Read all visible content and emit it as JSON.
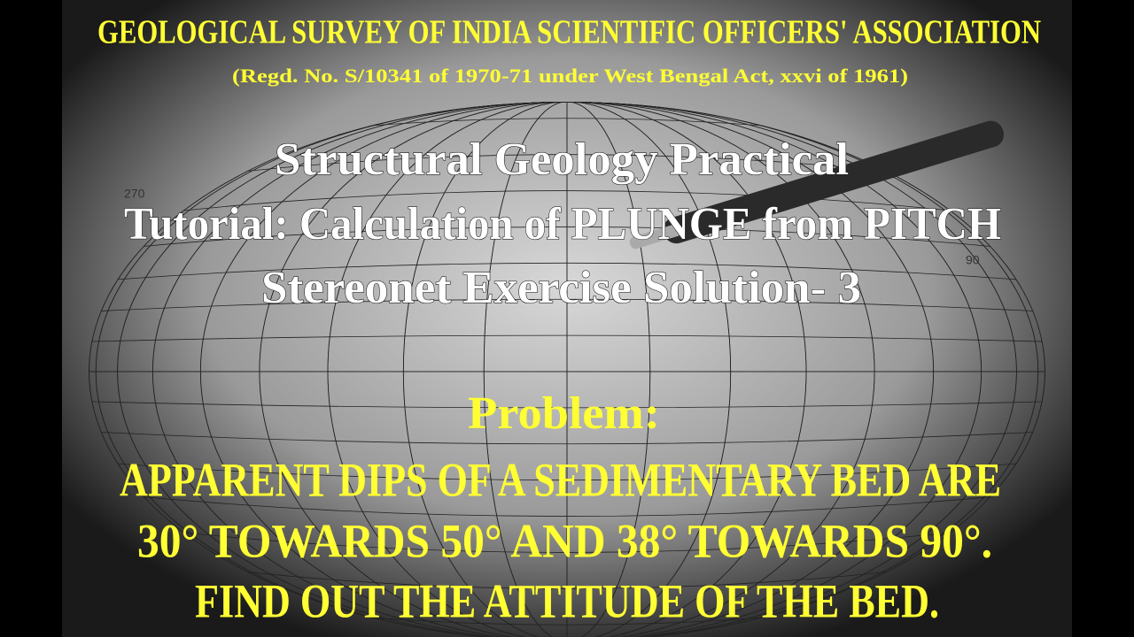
{
  "header": {
    "title": "GEOLOGICAL SURVEY OF INDIA SCIENTIFIC OFFICERS' ASSOCIATION",
    "subtitle": "(Regd. No. S/10341 of 1970-71 under West Bengal Act, xxvi of 1961)"
  },
  "tutorial": {
    "lines": [
      "Structural Geology Practical",
      "Tutorial: Calculation of PLUNGE from PITCH",
      "Stereonet Exercise Solution- 3"
    ]
  },
  "problem": {
    "label": "Problem:",
    "lines": [
      "APPARENT DIPS OF A SEDIMENTARY BED ARE",
      "30° TOWARDS 50° AND 38° TOWARDS 90°.",
      "FIND OUT THE ATTITUDE OF THE BED."
    ]
  },
  "stereonet_labels": [
    "270",
    "90"
  ]
}
